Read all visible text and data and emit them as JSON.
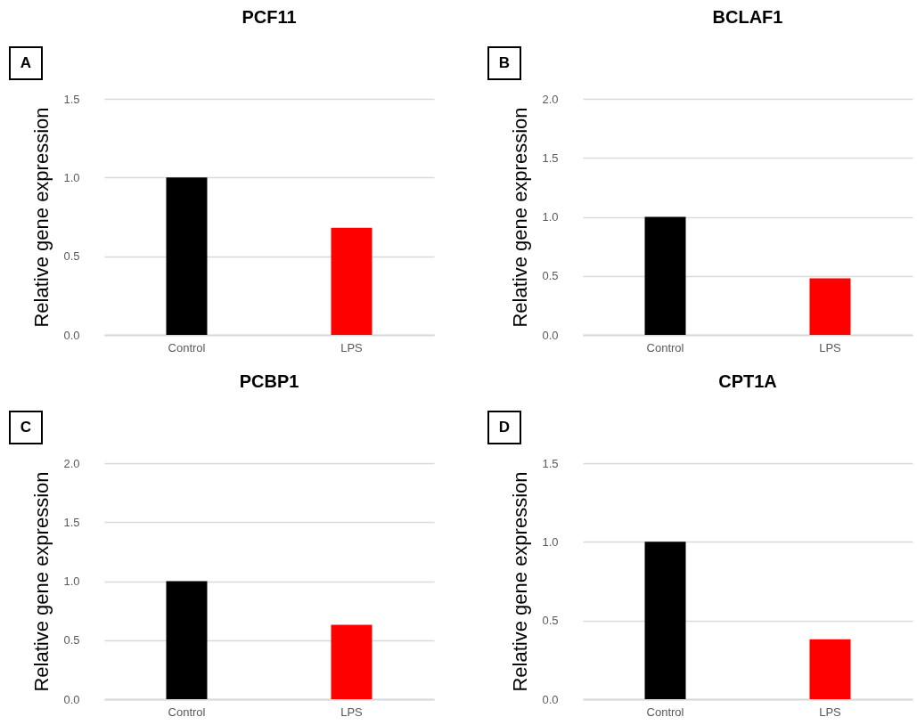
{
  "chart_data": [
    {
      "type": "bar",
      "title": "PCF11",
      "ylabel": "Relative gene expression",
      "annotations": [
        "A"
      ],
      "categories": [
        "Control",
        "LPS"
      ],
      "values": [
        1.0,
        0.68
      ],
      "colors": [
        "#000000",
        "#ff0000"
      ],
      "ylim": [
        0,
        1.5
      ],
      "yticks": [
        {
          "value": 0,
          "label": "0.0"
        },
        {
          "value": 0.5,
          "label": "0.5"
        },
        {
          "value": 1,
          "label": "1.0"
        },
        {
          "value": 1.5,
          "label": "1.5"
        }
      ],
      "grid": "y"
    },
    {
      "type": "bar",
      "title": "BCLAF1",
      "ylabel": "Relative gene expression",
      "annotations": [
        "B"
      ],
      "categories": [
        "Control",
        "LPS"
      ],
      "values": [
        1.0,
        0.48
      ],
      "colors": [
        "#000000",
        "#ff0000"
      ],
      "ylim": [
        0,
        2.0
      ],
      "yticks": [
        {
          "value": 0,
          "label": "0.0"
        },
        {
          "value": 0.5,
          "label": "0.5"
        },
        {
          "value": 1,
          "label": "1.0"
        },
        {
          "value": 1.5,
          "label": "1.5"
        },
        {
          "value": 2,
          "label": "2.0"
        }
      ],
      "grid": "y"
    },
    {
      "type": "bar",
      "title": "PCBP1",
      "ylabel": "Relative gene expression",
      "annotations": [
        "C"
      ],
      "categories": [
        "Control",
        "LPS"
      ],
      "values": [
        1.0,
        0.63
      ],
      "colors": [
        "#000000",
        "#ff0000"
      ],
      "ylim": [
        0,
        2.0
      ],
      "yticks": [
        {
          "value": 0,
          "label": "0.0"
        },
        {
          "value": 0.5,
          "label": "0.5"
        },
        {
          "value": 1,
          "label": "1.0"
        },
        {
          "value": 1.5,
          "label": "1.5"
        },
        {
          "value": 2,
          "label": "2.0"
        }
      ],
      "grid": "y"
    },
    {
      "type": "bar",
      "title": "CPT1A",
      "ylabel": "Relative gene expression",
      "annotations": [
        "D"
      ],
      "categories": [
        "Control",
        "LPS"
      ],
      "values": [
        1.0,
        0.38
      ],
      "colors": [
        "#000000",
        "#ff0000"
      ],
      "ylim": [
        0,
        1.5
      ],
      "yticks": [
        {
          "value": 0,
          "label": "0.0"
        },
        {
          "value": 0.5,
          "label": "0.5"
        },
        {
          "value": 1,
          "label": "1.0"
        },
        {
          "value": 1.5,
          "label": "1.5"
        }
      ],
      "grid": "y"
    }
  ]
}
